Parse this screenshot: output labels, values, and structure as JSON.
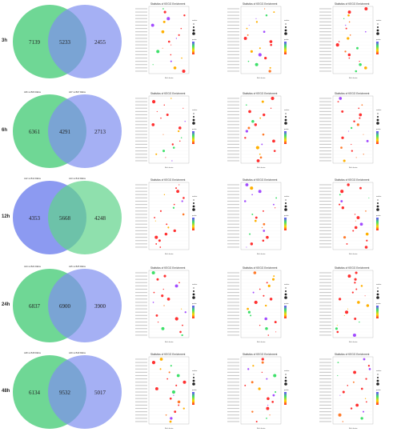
{
  "rows": [
    {
      "label": "3h",
      "set_labels": [
        "",
        ""
      ],
      "venn": {
        "left_only": "7139",
        "overlap": "5233",
        "right_only": "2455"
      },
      "plots": [
        {
          "title": "Statistics of KEGG Enrichment",
          "xlabel": "Rich factor"
        },
        {
          "title": "Statistics of KEGG Enrichment",
          "xlabel": "Rich factor"
        },
        {
          "title": "Statistics of KEGG Enrichment",
          "xlabel": "Rich factor"
        }
      ]
    },
    {
      "label": "6h",
      "set_labels": [
        "A06 vs B06 DEGs",
        "A07 vs B07 DEGs"
      ],
      "venn": {
        "left_only": "6361",
        "overlap": "4291",
        "right_only": "2713"
      },
      "plots": [
        {
          "title": "Statistics of KEGG Enrichment",
          "xlabel": "Rich factor"
        },
        {
          "title": "Statistics of KEGG Enrichment",
          "xlabel": "Rich factor"
        },
        {
          "title": "Statistics of KEGG Enrichment",
          "xlabel": "Rich factor"
        }
      ]
    },
    {
      "label": "12h",
      "set_labels": [
        "A12 vs B12 DEGs",
        "A13 vs B13 DEGs"
      ],
      "venn": {
        "left_only": "4353",
        "overlap": "5668",
        "right_only": "4248"
      },
      "plots": [
        {
          "title": "Statistics of KEGG Enrichment",
          "xlabel": "Rich factor"
        },
        {
          "title": "Statistics of KEGG Enrichment",
          "xlabel": "Rich factor"
        },
        {
          "title": "Statistics of KEGG Enrichment",
          "xlabel": "Rich factor"
        }
      ]
    },
    {
      "label": "24h",
      "set_labels": [
        "A24 vs B24 DEGs",
        "A25 vs B25 DEGs"
      ],
      "venn": {
        "left_only": "6837",
        "overlap": "6900",
        "right_only": "3900"
      },
      "plots": [
        {
          "title": "Statistics of KEGG Enrichment",
          "xlabel": "Rich factor"
        },
        {
          "title": "Statistics of KEGG Enrichment",
          "xlabel": "Rich factor"
        },
        {
          "title": "Statistics of KEGG Enrichment",
          "xlabel": "Rich factor"
        }
      ]
    },
    {
      "label": "48h",
      "set_labels": [
        "A48 vs B48 DEGs",
        "A49 vs B49 DEGs"
      ],
      "venn": {
        "left_only": "6134",
        "overlap": "9532",
        "right_only": "5017"
      },
      "plots": [
        {
          "title": "Statistics of KEGG Enrichment",
          "xlabel": "Rich factor"
        },
        {
          "title": "Statistics of KEGG Enrichment",
          "xlabel": "Rich factor"
        },
        {
          "title": "Statistics of KEGG Enrichment",
          "xlabel": "Rich factor"
        }
      ]
    }
  ],
  "legend": {
    "size_title": "number",
    "color_title": "qvalue"
  },
  "colors": {
    "venn_green": "#5fd38a",
    "venn_blue": "#7f8ff0",
    "venn_overlap": "#4aa6b8",
    "gradient_low": "#ff2a2a",
    "gradient_mid": "#ffd400",
    "gradient_mid2": "#3ee06a",
    "gradient_high": "#6a4cff",
    "dot_purple": "#a24bff",
    "dot_red": "#ff3030"
  }
}
